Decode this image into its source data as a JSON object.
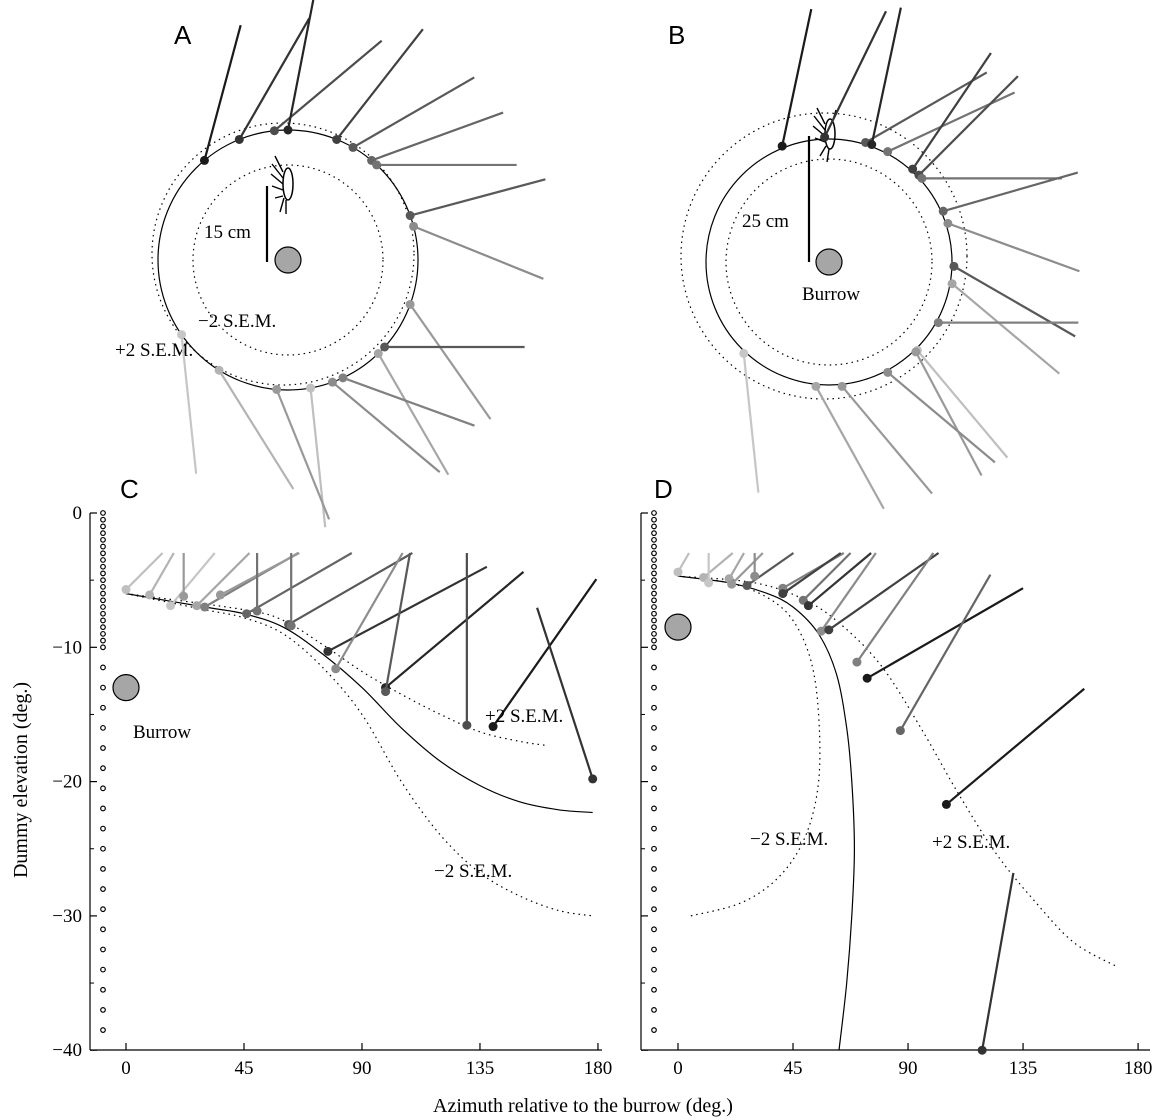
{
  "chart_data": [
    {
      "type": "scatter",
      "panel": "A",
      "scale_bar_label": "15 cm",
      "annotations": [
        "−2 S.E.M.",
        "+2 S.E.M."
      ],
      "burrow_marker": true,
      "mean_radius_cm": 15,
      "points": [
        {
          "angle_deg": 130,
          "dir_deg": 75,
          "shade": "#1a1a1a"
        },
        {
          "angle_deg": 112,
          "dir_deg": 60,
          "shade": "#333333"
        },
        {
          "angle_deg": 96,
          "dir_deg": 40,
          "shade": "#4d4d4d"
        },
        {
          "angle_deg": 90,
          "dir_deg": 79,
          "shade": "#262626"
        },
        {
          "angle_deg": 68,
          "dir_deg": 52,
          "shade": "#404040"
        },
        {
          "angle_deg": 60,
          "dir_deg": 30,
          "shade": "#595959"
        },
        {
          "angle_deg": 50,
          "dir_deg": 20,
          "shade": "#666666"
        },
        {
          "angle_deg": 47,
          "dir_deg": 0,
          "shade": "#737373"
        },
        {
          "angle_deg": 20,
          "dir_deg": 15,
          "shade": "#595959"
        },
        {
          "angle_deg": 15,
          "dir_deg": -22,
          "shade": "#8c8c8c"
        },
        {
          "angle_deg": -20,
          "dir_deg": -55,
          "shade": "#999999"
        },
        {
          "angle_deg": -42,
          "dir_deg": 0,
          "shade": "#595959"
        },
        {
          "angle_deg": -46,
          "dir_deg": -60,
          "shade": "#a6a6a6"
        },
        {
          "angle_deg": -65,
          "dir_deg": -20,
          "shade": "#808080"
        },
        {
          "angle_deg": -70,
          "dir_deg": -40,
          "shade": "#8c8c8c"
        },
        {
          "angle_deg": -80,
          "dir_deg": -84,
          "shade": "#bfbfbf"
        },
        {
          "angle_deg": -95,
          "dir_deg": -68,
          "shade": "#999999"
        },
        {
          "angle_deg": -122,
          "dir_deg": -58,
          "shade": "#b3b3b3"
        },
        {
          "angle_deg": -145,
          "dir_deg": -84,
          "shade": "#c6c6c6"
        }
      ]
    },
    {
      "type": "scatter",
      "panel": "B",
      "scale_bar_label": "25 cm",
      "annotations": [
        "Burrow"
      ],
      "burrow_marker": true,
      "mean_radius_cm": 25,
      "points": [
        {
          "angle_deg": 112,
          "dir_deg": 78,
          "shade": "#1a1a1a"
        },
        {
          "angle_deg": 92,
          "dir_deg": 64,
          "shade": "#333333"
        },
        {
          "angle_deg": 73,
          "dir_deg": 30,
          "shade": "#595959"
        },
        {
          "angle_deg": 70,
          "dir_deg": 78,
          "shade": "#262626"
        },
        {
          "angle_deg": 62,
          "dir_deg": 25,
          "shade": "#737373"
        },
        {
          "angle_deg": 48,
          "dir_deg": 56,
          "shade": "#404040"
        },
        {
          "angle_deg": 44,
          "dir_deg": 45,
          "shade": "#4d4d4d"
        },
        {
          "angle_deg": 42,
          "dir_deg": 0,
          "shade": "#737373"
        },
        {
          "angle_deg": 24,
          "dir_deg": 16,
          "shade": "#666666"
        },
        {
          "angle_deg": 18,
          "dir_deg": -20,
          "shade": "#8c8c8c"
        },
        {
          "angle_deg": -2,
          "dir_deg": -30,
          "shade": "#595959"
        },
        {
          "angle_deg": -10,
          "dir_deg": -40,
          "shade": "#a6a6a6"
        },
        {
          "angle_deg": -29,
          "dir_deg": 0,
          "shade": "#808080"
        },
        {
          "angle_deg": -45,
          "dir_deg": -50,
          "shade": "#bfbfbf"
        },
        {
          "angle_deg": -46,
          "dir_deg": -62,
          "shade": "#999999"
        },
        {
          "angle_deg": -62,
          "dir_deg": -40,
          "shade": "#8c8c8c"
        },
        {
          "angle_deg": -84,
          "dir_deg": -50,
          "shade": "#999999"
        },
        {
          "angle_deg": -96,
          "dir_deg": -61,
          "shade": "#a6a6a6"
        },
        {
          "angle_deg": -133,
          "dir_deg": -84,
          "shade": "#c6c6c6"
        }
      ]
    },
    {
      "type": "scatter",
      "panel": "C",
      "xlabel": "Azimuth relative to the burrow (deg.)",
      "ylabel": "Dummy elevation (deg.)",
      "xlim": [
        -12,
        180
      ],
      "ylim": [
        -40,
        0
      ],
      "xticks": [
        0,
        45,
        90,
        135,
        180
      ],
      "yticks": [
        0,
        -10,
        -20,
        -30,
        -40
      ],
      "annotations": [
        "Burrow",
        "+2 S.E.M.",
        "−2 S.E.M."
      ],
      "burrow_marker": {
        "x": 0,
        "y": -13
      },
      "mean_curve": [
        [
          0,
          -6
        ],
        [
          30,
          -7
        ],
        [
          45,
          -7.5
        ],
        [
          60,
          -8.5
        ],
        [
          75,
          -10.5
        ],
        [
          90,
          -13
        ],
        [
          105,
          -16
        ],
        [
          120,
          -18.5
        ],
        [
          135,
          -20.3
        ],
        [
          150,
          -21.5
        ],
        [
          165,
          -22.1
        ],
        [
          178,
          -22.3
        ]
      ],
      "minus2sem_curve": [
        [
          0,
          -6
        ],
        [
          30,
          -7.2
        ],
        [
          45,
          -7.8
        ],
        [
          60,
          -9
        ],
        [
          75,
          -11.5
        ],
        [
          90,
          -15
        ],
        [
          105,
          -20
        ],
        [
          120,
          -24
        ],
        [
          135,
          -26.8
        ],
        [
          150,
          -28.5
        ],
        [
          165,
          -29.6
        ],
        [
          178,
          -30
        ]
      ],
      "plus2sem_curve": [
        [
          0,
          -6
        ],
        [
          45,
          -7.2
        ],
        [
          60,
          -8
        ],
        [
          75,
          -9.8
        ],
        [
          90,
          -11.8
        ],
        [
          105,
          -13.5
        ],
        [
          120,
          -15
        ],
        [
          135,
          -16.3
        ],
        [
          150,
          -17
        ],
        [
          160,
          -17.3
        ]
      ],
      "points": [
        {
          "x": 0,
          "y": -5.7,
          "dir_deg": 45,
          "shade": "#bfbfbf"
        },
        {
          "x": 9,
          "y": -6.1,
          "dir_deg": 60,
          "shade": "#b3b3b3"
        },
        {
          "x": 17,
          "y": -6.9,
          "dir_deg": 50,
          "shade": "#c6c6c6"
        },
        {
          "x": 22,
          "y": -6.2,
          "dir_deg": 90,
          "shade": "#999999"
        },
        {
          "x": 27,
          "y": -6.9,
          "dir_deg": 45,
          "shade": "#a6a6a6"
        },
        {
          "x": 30,
          "y": -7.0,
          "dir_deg": 30,
          "shade": "#808080"
        },
        {
          "x": 36,
          "y": -6.1,
          "dir_deg": 28,
          "shade": "#999999"
        },
        {
          "x": 46,
          "y": -7.5,
          "dir_deg": 30,
          "shade": "#666666"
        },
        {
          "x": 50,
          "y": -7.3,
          "dir_deg": 90,
          "shade": "#737373"
        },
        {
          "x": 62,
          "y": -8.3,
          "dir_deg": 30,
          "shade": "#595959"
        },
        {
          "x": 63,
          "y": -8.4,
          "dir_deg": 90,
          "shade": "#737373"
        },
        {
          "x": 77,
          "y": -10.3,
          "dir_deg": 28,
          "shade": "#333333"
        },
        {
          "x": 80,
          "y": -11.6,
          "dir_deg": 60,
          "shade": "#8c8c8c"
        },
        {
          "x": 99,
          "y": -13.0,
          "dir_deg": 40,
          "shade": "#262626"
        },
        {
          "x": 99,
          "y": -13.3,
          "dir_deg": 80,
          "shade": "#595959"
        },
        {
          "x": 130,
          "y": -15.8,
          "dir_deg": 90,
          "shade": "#4d4d4d"
        },
        {
          "x": 140,
          "y": -15.9,
          "dir_deg": 55,
          "shade": "#1a1a1a"
        },
        {
          "x": 178,
          "y": -19.8,
          "dir_deg": 108,
          "shade": "#333333"
        }
      ]
    },
    {
      "type": "scatter",
      "panel": "D",
      "xlim": [
        -12,
        180
      ],
      "ylim": [
        -40,
        0
      ],
      "xticks": [
        0,
        45,
        90,
        135,
        180
      ],
      "yticks": [
        0,
        -10,
        -20,
        -30,
        -40
      ],
      "annotations": [
        "−2 S.E.M.",
        "+2 S.E.M."
      ],
      "burrow_marker": {
        "x": 0,
        "y": -8.5
      },
      "mean_curve": [
        [
          0,
          -4.7
        ],
        [
          20,
          -5.2
        ],
        [
          35,
          -6
        ],
        [
          45,
          -7
        ],
        [
          55,
          -9
        ],
        [
          62,
          -12
        ],
        [
          66,
          -16
        ],
        [
          68,
          -20
        ],
        [
          69,
          -25
        ],
        [
          68,
          -30
        ],
        [
          66,
          -35
        ],
        [
          63,
          -40
        ]
      ],
      "minus2sem_curve": [
        [
          0,
          -4.7
        ],
        [
          20,
          -5.2
        ],
        [
          35,
          -6.3
        ],
        [
          45,
          -8
        ],
        [
          52,
          -11
        ],
        [
          55,
          -15
        ],
        [
          55,
          -20
        ],
        [
          50,
          -24
        ],
        [
          40,
          -27
        ],
        [
          25,
          -29
        ],
        [
          5,
          -30
        ]
      ],
      "plus2sem_curve": [
        [
          0,
          -4.7
        ],
        [
          30,
          -5.2
        ],
        [
          50,
          -6.5
        ],
        [
          65,
          -8.5
        ],
        [
          80,
          -11.5
        ],
        [
          95,
          -16
        ],
        [
          110,
          -21
        ],
        [
          125,
          -25.5
        ],
        [
          140,
          -29
        ],
        [
          155,
          -32
        ],
        [
          172,
          -33.8
        ]
      ],
      "points": [
        {
          "x": 0,
          "y": -4.4,
          "dir_deg": 60,
          "shade": "#bfbfbf"
        },
        {
          "x": 10,
          "y": -4.8,
          "dir_deg": 40,
          "shade": "#b3b3b3"
        },
        {
          "x": 12,
          "y": -5.2,
          "dir_deg": 90,
          "shade": "#c6c6c6"
        },
        {
          "x": 20,
          "y": -4.9,
          "dir_deg": 60,
          "shade": "#a6a6a6"
        },
        {
          "x": 21,
          "y": -5.3,
          "dir_deg": 45,
          "shade": "#999999"
        },
        {
          "x": 27,
          "y": -5.4,
          "dir_deg": 35,
          "shade": "#595959"
        },
        {
          "x": 30,
          "y": -4.7,
          "dir_deg": 90,
          "shade": "#8c8c8c"
        },
        {
          "x": 41,
          "y": -5.6,
          "dir_deg": 30,
          "shade": "#808080"
        },
        {
          "x": 41,
          "y": -6.0,
          "dir_deg": 35,
          "shade": "#404040"
        },
        {
          "x": 49,
          "y": -6.5,
          "dir_deg": 45,
          "shade": "#737373"
        },
        {
          "x": 51,
          "y": -6.9,
          "dir_deg": 40,
          "shade": "#333333"
        },
        {
          "x": 56,
          "y": -8.8,
          "dir_deg": 55,
          "shade": "#8c8c8c"
        },
        {
          "x": 59,
          "y": -8.7,
          "dir_deg": 35,
          "shade": "#404040"
        },
        {
          "x": 70,
          "y": -11.1,
          "dir_deg": 55,
          "shade": "#808080"
        },
        {
          "x": 74,
          "y": -12.3,
          "dir_deg": 30,
          "shade": "#1a1a1a"
        },
        {
          "x": 87,
          "y": -16.2,
          "dir_deg": 60,
          "shade": "#666666"
        },
        {
          "x": 105,
          "y": -21.7,
          "dir_deg": 40,
          "shade": "#1a1a1a"
        },
        {
          "x": 119,
          "y": -40,
          "dir_deg": 80,
          "shade": "#333333"
        }
      ]
    }
  ]
}
